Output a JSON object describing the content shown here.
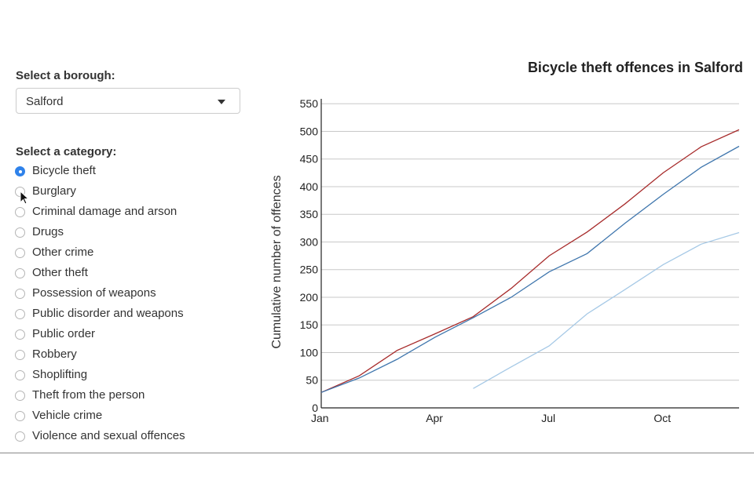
{
  "controls": {
    "borough_label": "Select a borough:",
    "borough_selected": "Salford",
    "category_label": "Select a category:",
    "categories": [
      {
        "label": "Bicycle theft",
        "checked": true
      },
      {
        "label": "Burglary",
        "checked": false
      },
      {
        "label": "Criminal damage and arson",
        "checked": false
      },
      {
        "label": "Drugs",
        "checked": false
      },
      {
        "label": "Other crime",
        "checked": false
      },
      {
        "label": "Other theft",
        "checked": false
      },
      {
        "label": "Possession of weapons",
        "checked": false
      },
      {
        "label": "Public disorder and weapons",
        "checked": false
      },
      {
        "label": "Public order",
        "checked": false
      },
      {
        "label": "Robbery",
        "checked": false
      },
      {
        "label": "Shoplifting",
        "checked": false
      },
      {
        "label": "Theft from the person",
        "checked": false
      },
      {
        "label": "Vehicle crime",
        "checked": false
      },
      {
        "label": "Violence and sexual offences",
        "checked": false
      }
    ]
  },
  "icons": {
    "caret": "chevron-down-icon",
    "cursor": "mouse-pointer-icon"
  },
  "chart_data": {
    "type": "line",
    "title": "Bicycle theft offences in Salford",
    "xlabel": "",
    "ylabel": "Cumulative number of offences",
    "x_ticks": [
      {
        "label": "Jan",
        "month": 1
      },
      {
        "label": "Apr",
        "month": 4
      },
      {
        "label": "Jul",
        "month": 7
      },
      {
        "label": "Oct",
        "month": 10
      }
    ],
    "xlim": [
      1,
      12
    ],
    "ylim": [
      0,
      550
    ],
    "y_ticks": [
      0,
      50,
      100,
      150,
      200,
      250,
      300,
      350,
      400,
      450,
      500,
      550
    ],
    "grid": true,
    "legend": "none",
    "series": [
      {
        "color": "#a72b2b",
        "points": [
          [
            1,
            28
          ],
          [
            2,
            58
          ],
          [
            3,
            104
          ],
          [
            4,
            134
          ],
          [
            5,
            165
          ],
          [
            6,
            216
          ],
          [
            7,
            275
          ],
          [
            8,
            318
          ],
          [
            9,
            369
          ],
          [
            10,
            425
          ],
          [
            11,
            472
          ],
          [
            12,
            503
          ]
        ]
      },
      {
        "color": "#3f76ad",
        "points": [
          [
            1,
            28
          ],
          [
            2,
            54
          ],
          [
            3,
            88
          ],
          [
            4,
            128
          ],
          [
            5,
            163
          ],
          [
            6,
            200
          ],
          [
            7,
            246
          ],
          [
            8,
            279
          ],
          [
            9,
            334
          ],
          [
            10,
            386
          ],
          [
            11,
            435
          ],
          [
            12,
            473
          ]
        ]
      },
      {
        "color": "#a6c9e6",
        "points": [
          [
            5,
            35
          ],
          [
            6,
            74
          ],
          [
            7,
            112
          ],
          [
            8,
            170
          ],
          [
            9,
            214
          ],
          [
            10,
            259
          ],
          [
            11,
            296
          ],
          [
            12,
            317
          ]
        ]
      }
    ]
  }
}
